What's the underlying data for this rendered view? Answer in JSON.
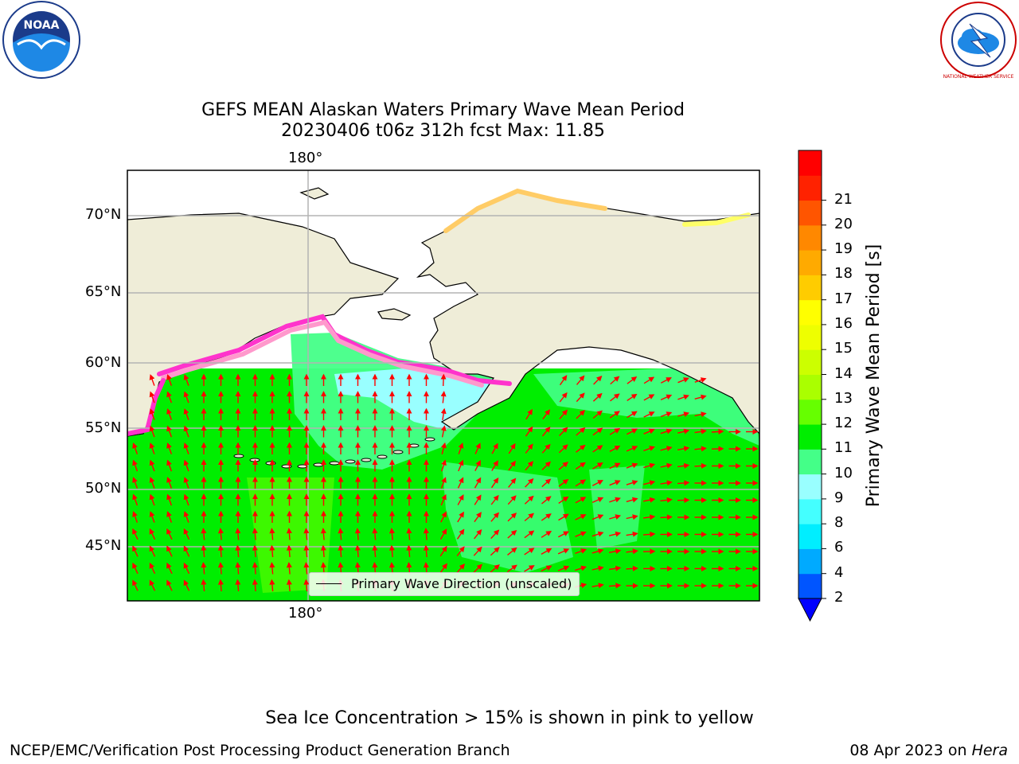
{
  "title": {
    "line1": "GEFS MEAN Alaskan Waters Primary Wave Mean Period",
    "line2": "20230406 t06z 312h fcst   Max: 11.85"
  },
  "axes": {
    "lon_top": "180°",
    "lon_bottom": "180°",
    "lat_labels": [
      "70°N",
      "65°N",
      "60°N",
      "55°N",
      "50°N",
      "45°N"
    ]
  },
  "legend": {
    "label": "Primary Wave Direction (unscaled)"
  },
  "colorbar": {
    "label": "Primary Wave Mean Period [s]",
    "ticks": [
      "2",
      "4",
      "6",
      "8",
      "9",
      "10",
      "11",
      "12",
      "13",
      "14",
      "15",
      "16",
      "17",
      "18",
      "19",
      "20",
      "21"
    ],
    "colors": [
      "#0055ff",
      "#00aaff",
      "#00eeff",
      "#44ffff",
      "#99ffff",
      "#44ff88",
      "#00ee00",
      "#66ff00",
      "#aaff00",
      "#ccff00",
      "#eeff00",
      "#ffff00",
      "#ffcc00",
      "#ffaa00",
      "#ff8800",
      "#ff5500",
      "#ff2200",
      "#ff0000"
    ],
    "under_color": "#0000ff"
  },
  "map": {
    "land_color": "#efedd8",
    "ocean_fill": "#00ee00",
    "light_zone_color": "#44ff88",
    "cyan_zone_color": "#99ffff",
    "arrow_color": "#ff0000",
    "ice_colors": [
      "#ff33cc",
      "#ff99cc",
      "#ffcc66",
      "#ffff66"
    ]
  },
  "notes": {
    "ice": "Sea Ice Concentration > 15% is shown in pink to yellow"
  },
  "footer": {
    "left": "NCEP/EMC/Verification Post Processing Product Generation Branch",
    "right_prefix": "08 Apr 2023 on ",
    "right_host": "Hera"
  },
  "logos": {
    "noaa": {
      "center_text": "NOAA"
    },
    "nws": {
      "ring_text": "NATIONAL WEATHER SERVICE"
    }
  }
}
